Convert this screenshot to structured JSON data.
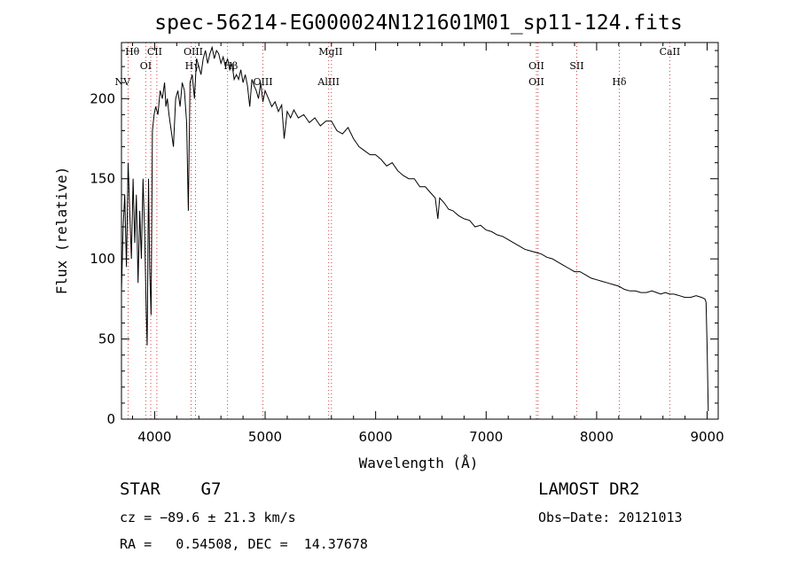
{
  "chart_data": {
    "type": "line",
    "title": "spec-56214-EG000024N121601M01_sp11-124.fits",
    "xlabel": "Wavelength (Å)",
    "ylabel": "Flux (relative)",
    "xlim": [
      3700,
      9100
    ],
    "ylim": [
      0,
      235
    ],
    "xticks": [
      4000,
      5000,
      6000,
      7000,
      8000,
      9000
    ],
    "yticks": [
      0,
      50,
      100,
      150,
      200
    ],
    "grid": false,
    "series": [
      {
        "x": [
          3700,
          3715,
          3730,
          3745,
          3760,
          3775,
          3790,
          3805,
          3820,
          3835,
          3850,
          3865,
          3880,
          3895,
          3910,
          3925,
          3933,
          3945,
          3955,
          3968,
          3980,
          3995,
          4010,
          4030,
          4050,
          4070,
          4090,
          4102,
          4115,
          4130,
          4150,
          4170,
          4190,
          4210,
          4230,
          4250,
          4270,
          4290,
          4305,
          4320,
          4340,
          4360,
          4380,
          4400,
          4420,
          4440,
          4460,
          4480,
          4500,
          4520,
          4540,
          4560,
          4580,
          4600,
          4620,
          4640,
          4660,
          4680,
          4700,
          4720,
          4740,
          4760,
          4780,
          4800,
          4820,
          4840,
          4861,
          4880,
          4900,
          4920,
          4940,
          4960,
          4980,
          5000,
          5030,
          5060,
          5090,
          5120,
          5150,
          5172,
          5200,
          5230,
          5260,
          5300,
          5350,
          5400,
          5450,
          5500,
          5550,
          5600,
          5650,
          5700,
          5750,
          5800,
          5850,
          5890,
          5950,
          6000,
          6050,
          6100,
          6150,
          6200,
          6250,
          6300,
          6350,
          6400,
          6450,
          6500,
          6540,
          6563,
          6580,
          6620,
          6660,
          6700,
          6750,
          6800,
          6850,
          6900,
          6950,
          7000,
          7050,
          7100,
          7150,
          7200,
          7250,
          7300,
          7350,
          7400,
          7450,
          7500,
          7550,
          7600,
          7650,
          7700,
          7750,
          7800,
          7850,
          7900,
          7950,
          8000,
          8050,
          8100,
          8150,
          8200,
          8250,
          8300,
          8350,
          8400,
          8450,
          8500,
          8542,
          8580,
          8620,
          8662,
          8700,
          8750,
          8800,
          8850,
          8900,
          8950,
          8980,
          8990,
          9000,
          9010
        ],
        "y": [
          80,
          120,
          140,
          95,
          160,
          130,
          100,
          150,
          110,
          140,
          85,
          130,
          100,
          150,
          115,
          65,
          46,
          150,
          95,
          65,
          180,
          190,
          195,
          190,
          205,
          200,
          210,
          195,
          200,
          190,
          180,
          170,
          200,
          205,
          195,
          210,
          205,
          185,
          130,
          210,
          215,
          200,
          225,
          220,
          215,
          225,
          230,
          222,
          228,
          232,
          225,
          230,
          228,
          222,
          226,
          220,
          225,
          218,
          222,
          212,
          215,
          212,
          218,
          210,
          215,
          208,
          195,
          212,
          208,
          205,
          200,
          210,
          198,
          205,
          200,
          195,
          198,
          192,
          196,
          175,
          192,
          188,
          193,
          188,
          190,
          185,
          188,
          183,
          186,
          186,
          180,
          178,
          182,
          175,
          170,
          168,
          165,
          165,
          162,
          158,
          160,
          155,
          152,
          150,
          150,
          145,
          145,
          141,
          138,
          125,
          138,
          135,
          131,
          130,
          127,
          125,
          124,
          120,
          121,
          118,
          117,
          115,
          114,
          112,
          110,
          108,
          106,
          105,
          104,
          103,
          101,
          100,
          98,
          96,
          94,
          92,
          92,
          90,
          88,
          87,
          86,
          85,
          84,
          83,
          81,
          80,
          80,
          79,
          79,
          80,
          79,
          78,
          79,
          78,
          78,
          77,
          76,
          76,
          77,
          76,
          75,
          73,
          45,
          5
        ]
      }
    ],
    "spectral_lines": [
      {
        "label": "Hθ",
        "x": 3798,
        "row": 1
      },
      {
        "label": "NV",
        "x": 3710,
        "row": 3
      },
      {
        "label": "OI",
        "x": 3920,
        "row": 2
      },
      {
        "label": "CII",
        "x": 4000,
        "row": 1
      },
      {
        "label": "OIII",
        "x": 4350,
        "row": 1
      },
      {
        "label": "Hγ",
        "x": 4340,
        "row": 2
      },
      {
        "label": "Hβ",
        "x": 4690,
        "row": 2
      },
      {
        "label": "OIII",
        "x": 4980,
        "row": 3
      },
      {
        "label": "MgII",
        "x": 5592,
        "row": 1
      },
      {
        "label": "AlIII",
        "x": 5575,
        "row": 3
      },
      {
        "label": "OII",
        "x": 7455,
        "row": 2
      },
      {
        "label": "OII",
        "x": 7455,
        "row": 3
      },
      {
        "label": "SII",
        "x": 7820,
        "row": 2
      },
      {
        "label": "Hδ",
        "x": 8205,
        "row": 3
      },
      {
        "label": "CaII",
        "x": 8662,
        "row": 1
      }
    ],
    "dotted_line_x": [
      3760,
      3920,
      3965,
      4020,
      4330,
      4370,
      4660,
      4980,
      5575,
      5600,
      7455,
      7470,
      7820,
      8205,
      8662
    ]
  },
  "footer": {
    "object_class": "STAR    G7",
    "cz": "cz = −89.6 ± 21.3 km/s",
    "coords": "RA =   0.54508, DEC =  14.37678",
    "survey": "LAMOST DR2",
    "obs_date": "Obs−Date: 20121013"
  }
}
